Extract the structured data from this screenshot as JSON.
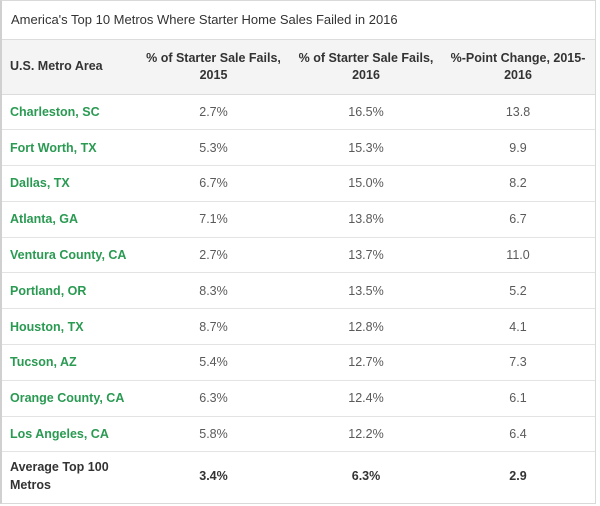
{
  "title": "America's Top 10 Metros Where Starter Home Sales Failed in 2016",
  "headers": {
    "metro": "U.S. Metro Area",
    "fail_2015": "% of Starter Sale Fails, 2015",
    "fail_2016": "% of Starter Sale Fails, 2016",
    "change": "%-Point Change, 2015-2016"
  },
  "rows": [
    {
      "metro": "Charleston, SC",
      "fail_2015": "2.7%",
      "fail_2016": "16.5%",
      "change": "13.8"
    },
    {
      "metro": "Fort Worth, TX",
      "fail_2015": "5.3%",
      "fail_2016": "15.3%",
      "change": "9.9"
    },
    {
      "metro": "Dallas, TX",
      "fail_2015": "6.7%",
      "fail_2016": "15.0%",
      "change": "8.2"
    },
    {
      "metro": "Atlanta, GA",
      "fail_2015": "7.1%",
      "fail_2016": "13.8%",
      "change": "6.7"
    },
    {
      "metro": "Ventura County, CA",
      "fail_2015": "2.7%",
      "fail_2016": "13.7%",
      "change": "11.0"
    },
    {
      "metro": "Portland, OR",
      "fail_2015": "8.3%",
      "fail_2016": "13.5%",
      "change": "5.2"
    },
    {
      "metro": "Houston, TX",
      "fail_2015": "8.7%",
      "fail_2016": "12.8%",
      "change": "4.1"
    },
    {
      "metro": "Tucson, AZ",
      "fail_2015": "5.4%",
      "fail_2016": "12.7%",
      "change": "7.3"
    },
    {
      "metro": "Orange County, CA",
      "fail_2015": "6.3%",
      "fail_2016": "12.4%",
      "change": "6.1"
    },
    {
      "metro": "Los Angeles, CA",
      "fail_2015": "5.8%",
      "fail_2016": "12.2%",
      "change": "6.4"
    }
  ],
  "average": {
    "label": "Average Top 100 Metros",
    "fail_2015": "3.4%",
    "fail_2016": "6.3%",
    "change": "2.9"
  },
  "colors": {
    "metro_link": "#2a9a52",
    "header_bg": "#f4f4f4"
  }
}
